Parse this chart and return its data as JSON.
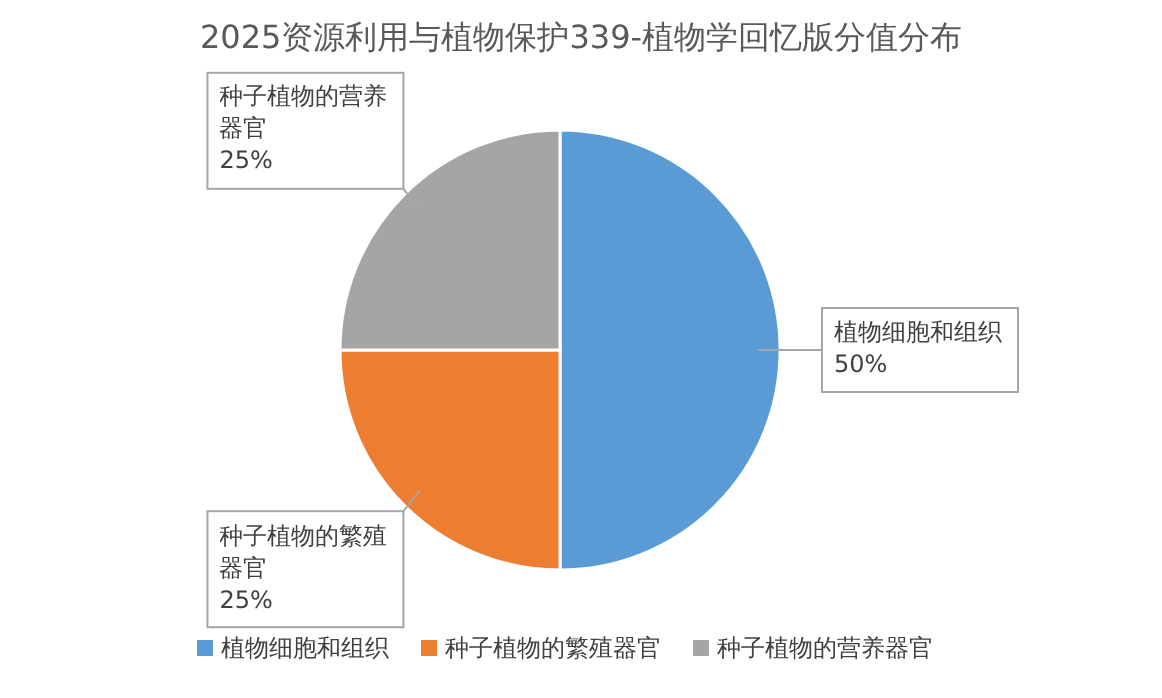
{
  "chart_data": {
    "type": "pie",
    "title": "2025资源利用与植物保护339-植物学回忆版分值分布",
    "categories": [
      "植物细胞和组织",
      "种子植物的繁殖器官",
      "种子植物的营养器官"
    ],
    "values": [
      50,
      25,
      25
    ],
    "value_labels": [
      "50%",
      "25%",
      "25%"
    ],
    "colors": [
      "#5b9bd5",
      "#ed7d31",
      "#a5a5a5"
    ],
    "legend": "bottom"
  }
}
